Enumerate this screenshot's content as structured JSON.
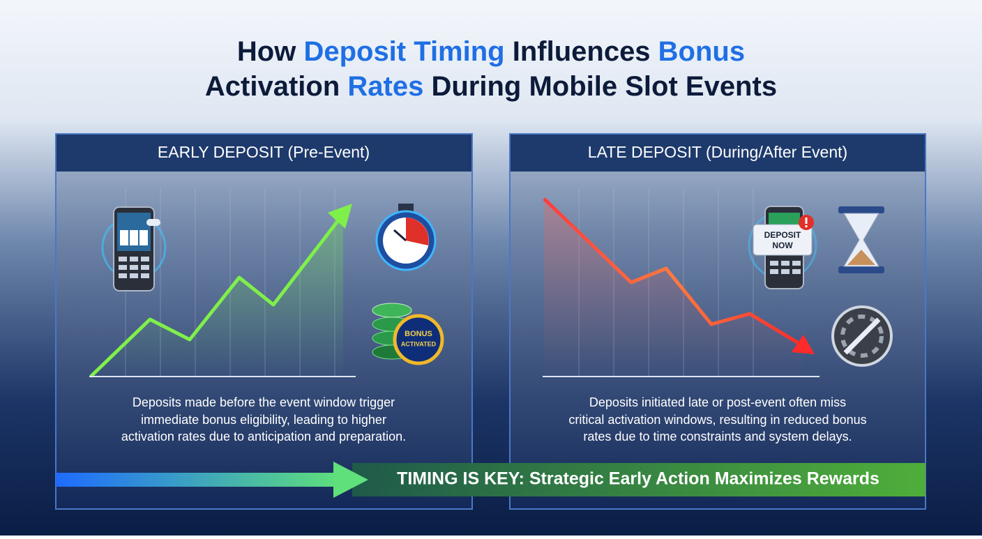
{
  "title": {
    "lines": [
      [
        {
          "text": "How ",
          "highlight": false
        },
        {
          "text": "Deposit Timing",
          "highlight": true
        },
        {
          "text": " Influences ",
          "highlight": false
        },
        {
          "text": "Bonus",
          "highlight": true
        }
      ],
      [
        {
          "text": "Activation ",
          "highlight": false
        },
        {
          "text": "Rates",
          "highlight": true
        },
        {
          "text": " During Mobile Slot Events",
          "highlight": false
        }
      ]
    ]
  },
  "panels": [
    {
      "header": "EARLY DEPOSIT (Pre-Event)",
      "badge": [
        "BONUS",
        "ACTIVATED"
      ],
      "description": [
        "Deposits made before the event window trigger",
        "immediate bonus eligibility, leading to higher",
        "activation rates due to anticipation and preparation."
      ]
    },
    {
      "header": "LATE DEPOSIT (During/After Event)",
      "badge": [
        "DEPOSIT",
        "NOW"
      ],
      "description": [
        "Deposits initiated late or post-event often miss",
        "critical activation windows, resulting in reduced bonus",
        "rates due to time constraints and system delays."
      ]
    }
  ],
  "banner": "TIMING IS KEY: Strategic Early Action Maximizes Rewards"
}
